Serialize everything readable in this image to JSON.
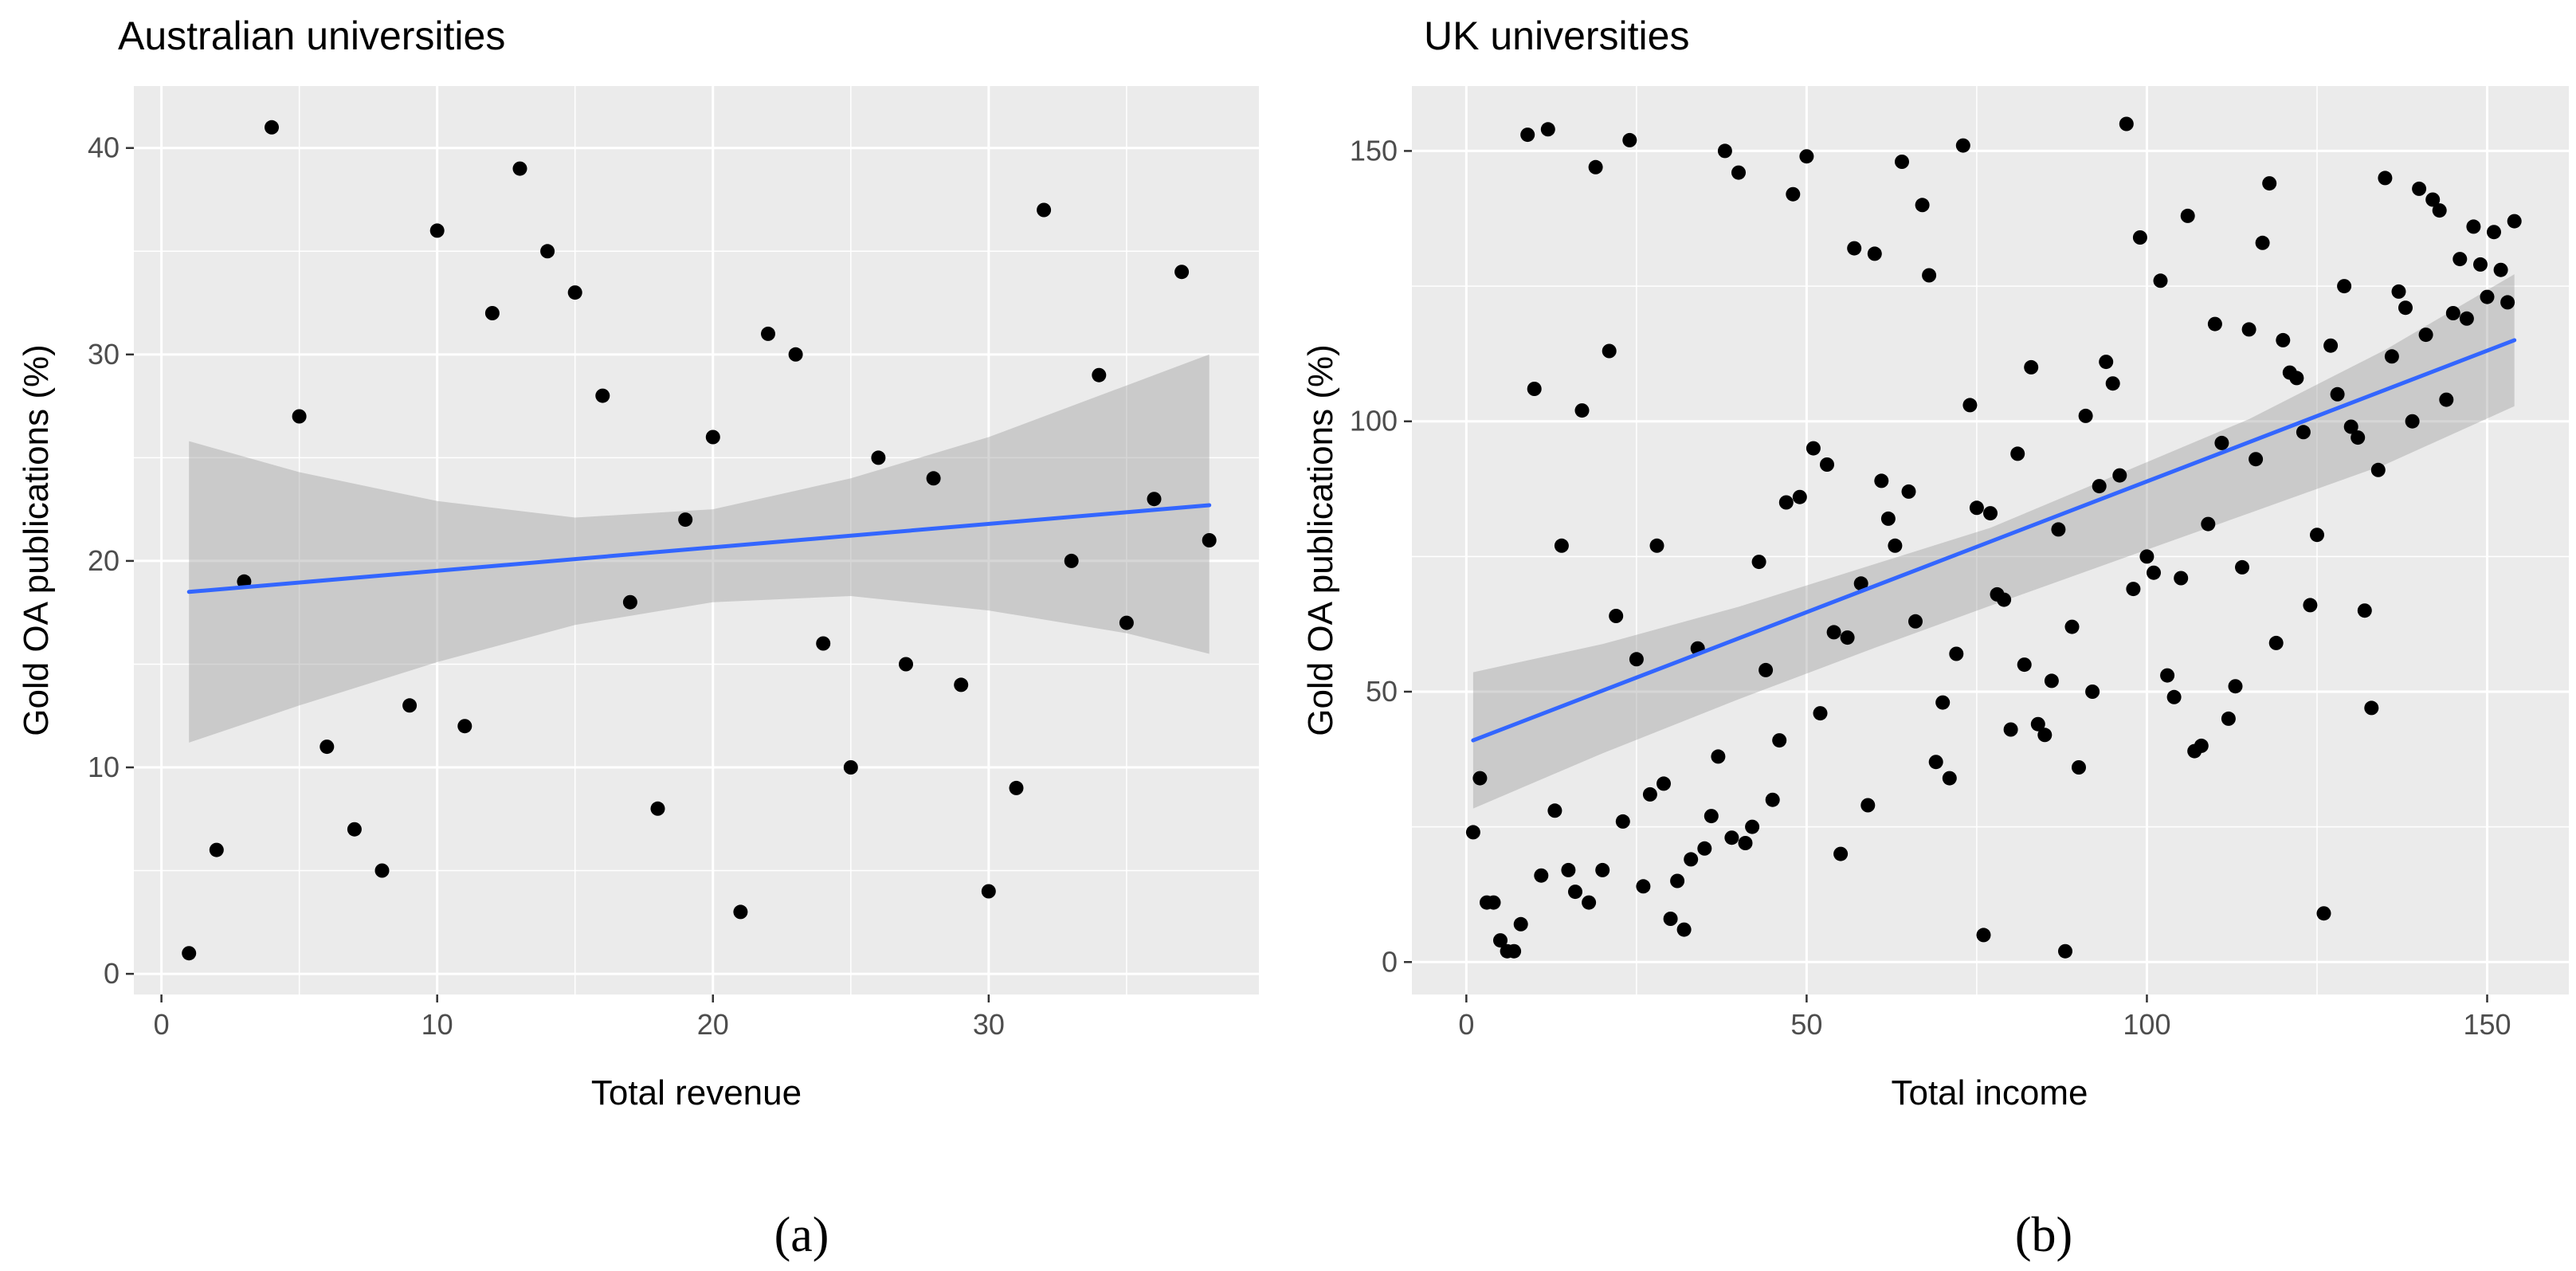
{
  "chart_data": [
    {
      "type": "scatter",
      "title": "Australian universities",
      "xlabel": "Total revenue",
      "ylabel": "Gold OA publications (%)",
      "xlim": [
        -1.0,
        39.8
      ],
      "ylim": [
        -1.0,
        43.0
      ],
      "xticks": [
        0,
        10,
        20,
        30
      ],
      "yticks": [
        0,
        10,
        20,
        30,
        40
      ],
      "grid": true,
      "caption": "(a)",
      "points": [
        [
          1,
          1
        ],
        [
          2,
          6
        ],
        [
          3,
          19
        ],
        [
          4,
          41
        ],
        [
          5,
          27
        ],
        [
          6,
          11
        ],
        [
          7,
          7
        ],
        [
          8,
          5
        ],
        [
          9,
          13
        ],
        [
          10,
          36
        ],
        [
          11,
          12
        ],
        [
          12,
          32
        ],
        [
          13,
          39
        ],
        [
          14,
          35
        ],
        [
          15,
          33
        ],
        [
          16,
          28
        ],
        [
          17,
          18
        ],
        [
          18,
          8
        ],
        [
          19,
          22
        ],
        [
          20,
          26
        ],
        [
          21,
          3
        ],
        [
          22,
          31
        ],
        [
          23,
          30
        ],
        [
          24,
          16
        ],
        [
          25,
          10
        ],
        [
          26,
          25
        ],
        [
          27,
          15
        ],
        [
          28,
          24
        ],
        [
          29,
          14
        ],
        [
          30,
          4
        ],
        [
          31,
          9
        ],
        [
          32,
          37
        ],
        [
          33,
          20
        ],
        [
          34,
          29
        ],
        [
          35,
          17
        ],
        [
          36,
          23
        ],
        [
          37,
          34
        ],
        [
          38,
          21
        ]
      ],
      "fit": {
        "x": [
          1,
          38
        ],
        "y": [
          18.5,
          22.7
        ]
      },
      "ci_band": {
        "x": [
          1,
          5,
          10,
          15,
          20,
          25,
          30,
          35,
          38
        ],
        "upper": [
          25.8,
          24.3,
          22.9,
          22.1,
          22.5,
          24.0,
          26.0,
          28.5,
          30.0
        ],
        "lower": [
          11.2,
          13.0,
          15.1,
          16.9,
          18.0,
          18.3,
          17.6,
          16.5,
          15.5
        ]
      },
      "colors": {
        "panel": "#ebebeb",
        "grid": "#ffffff",
        "point": "#000000",
        "line": "#3366ff",
        "band": "#999999"
      }
    },
    {
      "type": "scatter",
      "title": "UK universities",
      "xlabel": "Total income",
      "ylabel": "Gold OA publications (%)",
      "xlim": [
        -8.0,
        162.0
      ],
      "ylim": [
        -6.0,
        162.0
      ],
      "xticks": [
        0,
        50,
        100,
        150
      ],
      "yticks": [
        0,
        50,
        100,
        150
      ],
      "grid": true,
      "caption": "(b)",
      "points": [
        [
          1,
          24
        ],
        [
          2,
          34
        ],
        [
          3,
          11
        ],
        [
          4,
          11
        ],
        [
          5,
          4
        ],
        [
          6,
          2
        ],
        [
          7,
          2
        ],
        [
          8,
          7
        ],
        [
          9,
          153
        ],
        [
          10,
          106
        ],
        [
          11,
          16
        ],
        [
          12,
          154
        ],
        [
          13,
          28
        ],
        [
          14,
          77
        ],
        [
          15,
          17
        ],
        [
          16,
          13
        ],
        [
          17,
          102
        ],
        [
          18,
          11
        ],
        [
          19,
          147
        ],
        [
          20,
          17
        ],
        [
          21,
          113
        ],
        [
          22,
          64
        ],
        [
          23,
          26
        ],
        [
          24,
          152
        ],
        [
          25,
          56
        ],
        [
          26,
          14
        ],
        [
          27,
          31
        ],
        [
          28,
          77
        ],
        [
          29,
          33
        ],
        [
          30,
          8
        ],
        [
          31,
          15
        ],
        [
          32,
          6
        ],
        [
          33,
          19
        ],
        [
          34,
          58
        ],
        [
          35,
          21
        ],
        [
          36,
          27
        ],
        [
          37,
          38
        ],
        [
          38,
          150
        ],
        [
          39,
          23
        ],
        [
          40,
          146
        ],
        [
          41,
          22
        ],
        [
          42,
          25
        ],
        [
          43,
          74
        ],
        [
          44,
          54
        ],
        [
          45,
          30
        ],
        [
          46,
          41
        ],
        [
          47,
          85
        ],
        [
          48,
          142
        ],
        [
          49,
          86
        ],
        [
          50,
          149
        ],
        [
          51,
          95
        ],
        [
          52,
          46
        ],
        [
          53,
          92
        ],
        [
          54,
          61
        ],
        [
          55,
          20
        ],
        [
          56,
          60
        ],
        [
          57,
          132
        ],
        [
          58,
          70
        ],
        [
          59,
          29
        ],
        [
          60,
          131
        ],
        [
          61,
          89
        ],
        [
          62,
          82
        ],
        [
          63,
          77
        ],
        [
          64,
          148
        ],
        [
          65,
          87
        ],
        [
          66,
          63
        ],
        [
          67,
          140
        ],
        [
          68,
          127
        ],
        [
          69,
          37
        ],
        [
          70,
          48
        ],
        [
          71,
          34
        ],
        [
          72,
          57
        ],
        [
          73,
          151
        ],
        [
          74,
          103
        ],
        [
          75,
          84
        ],
        [
          76,
          5
        ],
        [
          77,
          83
        ],
        [
          78,
          68
        ],
        [
          79,
          67
        ],
        [
          80,
          43
        ],
        [
          81,
          94
        ],
        [
          82,
          55
        ],
        [
          83,
          110
        ],
        [
          84,
          44
        ],
        [
          85,
          42
        ],
        [
          86,
          52
        ],
        [
          87,
          80
        ],
        [
          88,
          2
        ],
        [
          89,
          62
        ],
        [
          90,
          36
        ],
        [
          91,
          101
        ],
        [
          92,
          50
        ],
        [
          93,
          88
        ],
        [
          94,
          111
        ],
        [
          95,
          107
        ],
        [
          96,
          90
        ],
        [
          97,
          155
        ],
        [
          98,
          69
        ],
        [
          99,
          134
        ],
        [
          100,
          75
        ],
        [
          101,
          72
        ],
        [
          102,
          126
        ],
        [
          103,
          53
        ],
        [
          104,
          49
        ],
        [
          105,
          71
        ],
        [
          106,
          138
        ],
        [
          107,
          39
        ],
        [
          108,
          40
        ],
        [
          109,
          81
        ],
        [
          110,
          118
        ],
        [
          111,
          96
        ],
        [
          112,
          45
        ],
        [
          113,
          51
        ],
        [
          114,
          73
        ],
        [
          115,
          117
        ],
        [
          116,
          93
        ],
        [
          117,
          133
        ],
        [
          118,
          144
        ],
        [
          119,
          59
        ],
        [
          120,
          115
        ],
        [
          121,
          109
        ],
        [
          122,
          108
        ],
        [
          123,
          98
        ],
        [
          124,
          66
        ],
        [
          125,
          79
        ],
        [
          126,
          9
        ],
        [
          127,
          114
        ],
        [
          128,
          105
        ],
        [
          129,
          125
        ],
        [
          130,
          99
        ],
        [
          131,
          97
        ],
        [
          132,
          65
        ],
        [
          133,
          47
        ],
        [
          134,
          91
        ],
        [
          135,
          145
        ],
        [
          136,
          112
        ],
        [
          137,
          124
        ],
        [
          138,
          121
        ],
        [
          139,
          100
        ],
        [
          140,
          143
        ],
        [
          141,
          116
        ],
        [
          142,
          141
        ],
        [
          143,
          139
        ],
        [
          144,
          104
        ],
        [
          145,
          120
        ],
        [
          146,
          130
        ],
        [
          147,
          119
        ],
        [
          148,
          136
        ],
        [
          149,
          129
        ],
        [
          150,
          123
        ],
        [
          151,
          135
        ],
        [
          152,
          128
        ],
        [
          153,
          122
        ],
        [
          154,
          137
        ]
      ],
      "fit": {
        "x": [
          1,
          154
        ],
        "y": [
          41,
          115
        ]
      },
      "ci_band": {
        "x": [
          1,
          20,
          40,
          60,
          77,
          95,
          115,
          135,
          154
        ],
        "upper": [
          53.6,
          58.8,
          65.7,
          73.6,
          80.3,
          89.8,
          100.4,
          113.2,
          127.2
        ],
        "lower": [
          28.4,
          38.6,
          48.6,
          58.1,
          65.9,
          74.0,
          83.0,
          92.0,
          102.8
        ]
      },
      "colors": {
        "panel": "#ebebeb",
        "grid": "#ffffff",
        "point": "#000000",
        "line": "#3366ff",
        "band": "#999999"
      }
    }
  ]
}
